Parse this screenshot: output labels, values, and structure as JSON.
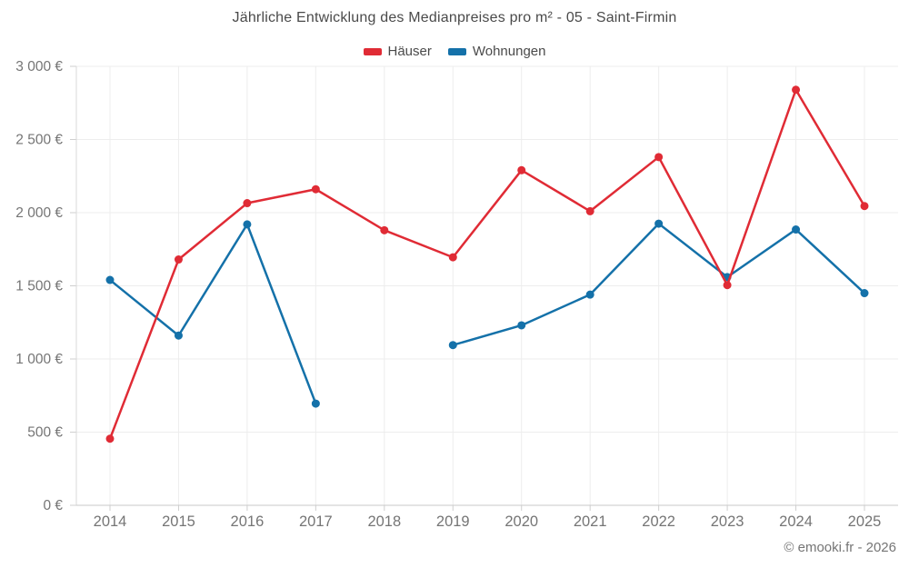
{
  "chart": {
    "title": "Jährliche Entwicklung des Medianpreises pro m² - 05 - Saint-Firmin",
    "footer": "© emooki.fr - 2026"
  },
  "chart_data": {
    "type": "line",
    "title": "Jährliche Entwicklung des Medianpreises pro m² - 05 - Saint-Firmin",
    "categories": [
      "2014",
      "2015",
      "2016",
      "2017",
      "2018",
      "2019",
      "2020",
      "2021",
      "2022",
      "2023",
      "2024",
      "2025"
    ],
    "series": [
      {
        "name": "Häuser",
        "color": "#e02b35",
        "values": [
          455,
          1680,
          2065,
          2160,
          1880,
          1695,
          2290,
          2010,
          2380,
          1505,
          2840,
          2045
        ]
      },
      {
        "name": "Wohnungen",
        "color": "#1471a9",
        "values": [
          1540,
          1160,
          1920,
          695,
          null,
          1095,
          1230,
          1440,
          1925,
          1560,
          1885,
          1450
        ]
      }
    ],
    "xlabel": "",
    "ylabel": "",
    "ylim": [
      0,
      3000
    ],
    "ytick_step": 500,
    "ytick_suffix": " €",
    "grid": true,
    "legend_position": "top"
  }
}
